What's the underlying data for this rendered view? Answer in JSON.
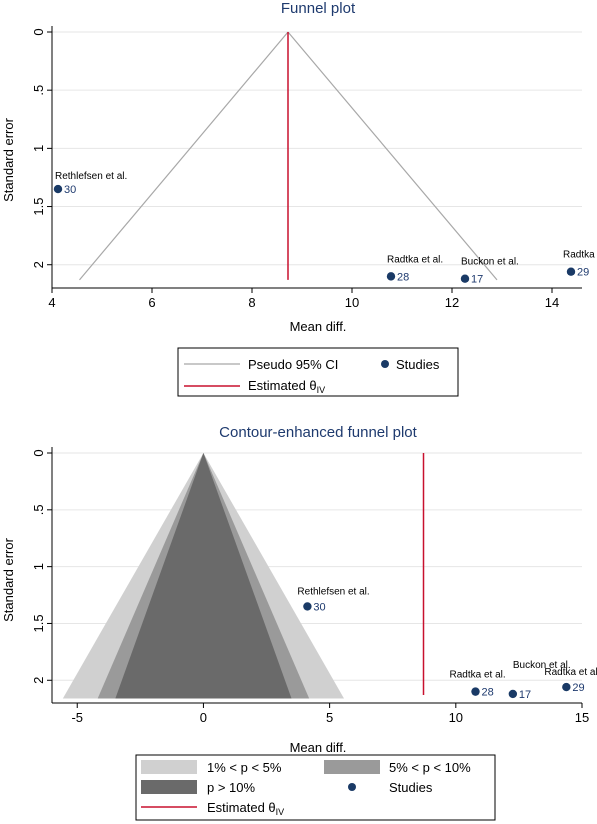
{
  "colors": {
    "marker": "#1a3a66",
    "estimate_line": "#c8102e",
    "ci_line": "#a8a8a8",
    "contour_1_5": "#d0d0d0",
    "contour_5_10": "#9a9a9a",
    "contour_gt10": "#6a6a6a",
    "grid": "#e6e6e6"
  },
  "chart_data": [
    {
      "type": "scatter",
      "title": "Funnel plot",
      "xlabel": "Mean diff.",
      "ylabel": "Standard error",
      "xlim": [
        4,
        14.6
      ],
      "ylim": [
        0,
        2.2
      ],
      "y_reversed": true,
      "xticks": [
        4,
        6,
        8,
        10,
        12,
        14
      ],
      "xtick_labels": [
        "4",
        "6",
        "8",
        "10",
        "12",
        "14"
      ],
      "yticks": [
        0,
        0.5,
        1,
        1.5,
        2
      ],
      "ytick_labels": [
        "0",
        ".5",
        "1",
        "1.5",
        "2"
      ],
      "grid": true,
      "estimate": 8.72,
      "ci_apex": [
        8.72,
        0
      ],
      "ci_left_end": [
        4.55,
        2.13
      ],
      "ci_right_end": [
        12.9,
        2.13
      ],
      "studies": [
        {
          "author": "Rethlefsen et al.",
          "id": "30",
          "x": 4.12,
          "y": 1.35
        },
        {
          "author": "Radtka et al.",
          "id": "28",
          "x": 10.78,
          "y": 2.1
        },
        {
          "author": "Buckon et al.",
          "id": "17",
          "x": 12.26,
          "y": 2.12
        },
        {
          "author": "Radtka et al.",
          "id": "29",
          "x": 14.38,
          "y": 2.06
        }
      ],
      "legend": {
        "position": "bottom",
        "items": [
          {
            "kind": "line",
            "color_key": "ci_line",
            "label": "Pseudo 95% CI",
            "sub": ""
          },
          {
            "kind": "dot",
            "color_key": "marker",
            "label": "Studies",
            "sub": ""
          },
          {
            "kind": "line",
            "color_key": "estimate_line",
            "label": "Estimated θ",
            "sub": "IV"
          }
        ]
      }
    },
    {
      "type": "scatter",
      "title": "Contour-enhanced funnel plot",
      "xlabel": "Mean diff.",
      "ylabel": "Standard error",
      "xlim": [
        -6,
        15
      ],
      "ylim": [
        0,
        2.2
      ],
      "y_reversed": true,
      "xticks": [
        -5,
        0,
        5,
        10,
        15
      ],
      "xtick_labels": [
        "-5",
        "0",
        "5",
        "10",
        "15"
      ],
      "yticks": [
        0,
        0.5,
        1,
        1.5,
        2
      ],
      "ytick_labels": [
        "0",
        ".5",
        "1",
        "1.5",
        "2"
      ],
      "grid": true,
      "estimate": 8.72,
      "contour_half_widths_at_se_2_16": {
        "p_1_5": 5.57,
        "p_5_10": 4.19,
        "p_gt10": 3.49
      },
      "studies": [
        {
          "author": "Rethlefsen et al.",
          "id": "30",
          "x": 4.12,
          "y": 1.35
        },
        {
          "author": "Radtka et al.",
          "id": "28",
          "x": 10.78,
          "y": 2.1
        },
        {
          "author": "Buckon et al.",
          "id": "17",
          "x": 12.26,
          "y": 2.12
        },
        {
          "author": "Radtka et al",
          "id": "29",
          "x": 14.38,
          "y": 2.06
        }
      ],
      "legend": {
        "position": "bottom",
        "items": [
          {
            "kind": "rect",
            "color_key": "contour_1_5",
            "label": "1% < p < 5%",
            "sub": ""
          },
          {
            "kind": "rect",
            "color_key": "contour_5_10",
            "label": "5% < p < 10%",
            "sub": ""
          },
          {
            "kind": "rect",
            "color_key": "contour_gt10",
            "label": "p > 10%",
            "sub": ""
          },
          {
            "kind": "dot",
            "color_key": "marker",
            "label": "Studies",
            "sub": ""
          },
          {
            "kind": "line",
            "color_key": "estimate_line",
            "label": "Estimated θ",
            "sub": "IV"
          }
        ]
      }
    }
  ]
}
